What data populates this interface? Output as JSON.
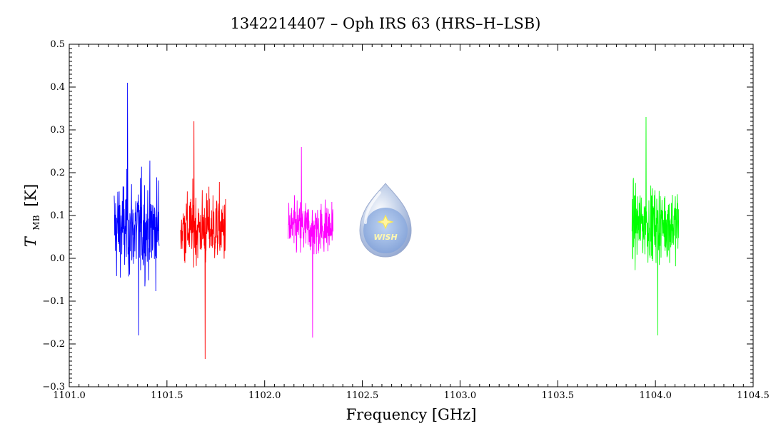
{
  "chart_data": {
    "type": "line",
    "title": "1342214407 – Oph IRS 63 (HRS–H–LSB)",
    "xlabel": "Frequency [GHz]",
    "ylabel_main": "T",
    "ylabel_sub": "MB",
    "ylabel_unit": "[K]",
    "xlim": [
      1101.0,
      1104.5
    ],
    "ylim": [
      -0.3,
      0.5
    ],
    "xticks": [
      {
        "value": 1101.0,
        "label": "1101.0"
      },
      {
        "value": 1101.5,
        "label": "1101.5"
      },
      {
        "value": 1102.0,
        "label": "1102.0"
      },
      {
        "value": 1102.5,
        "label": "1102.5"
      },
      {
        "value": 1103.0,
        "label": "1103.0"
      },
      {
        "value": 1103.5,
        "label": "1103.5"
      },
      {
        "value": 1104.0,
        "label": "1104.0"
      },
      {
        "value": 1104.5,
        "label": "1104.5"
      }
    ],
    "yticks": [
      {
        "value": -0.3,
        "label": "−0.3"
      },
      {
        "value": -0.2,
        "label": "−0.2"
      },
      {
        "value": -0.1,
        "label": "−0.1"
      },
      {
        "value": 0.0,
        "label": "0.0"
      },
      {
        "value": 0.1,
        "label": "0.1"
      },
      {
        "value": 0.2,
        "label": "0.2"
      },
      {
        "value": 0.3,
        "label": "0.3"
      },
      {
        "value": 0.4,
        "label": "0.4"
      },
      {
        "value": 0.5,
        "label": "0.5"
      }
    ],
    "grid": false,
    "series": [
      {
        "color": "#0000ff",
        "x_range": [
          1101.23,
          1101.46
        ],
        "mean": 0.07,
        "min": -0.18,
        "max": 0.41
      },
      {
        "color": "#ff0000",
        "x_range": [
          1101.57,
          1101.8
        ],
        "mean": 0.07,
        "min": -0.235,
        "max": 0.32
      },
      {
        "color": "#ff00ff",
        "x_range": [
          1102.12,
          1102.35
        ],
        "mean": 0.07,
        "min": -0.185,
        "max": 0.26
      },
      {
        "color": "#00ff00",
        "x_range": [
          1103.88,
          1104.12
        ],
        "mean": 0.08,
        "min": -0.18,
        "max": 0.33
      }
    ]
  },
  "logo": {
    "text": "WISH"
  }
}
